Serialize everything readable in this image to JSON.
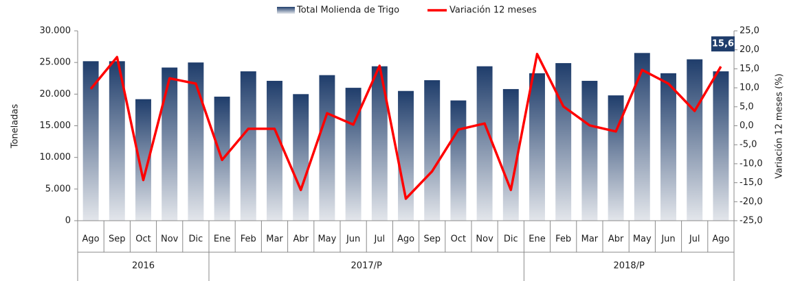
{
  "chart_data": {
    "type": "bar-line",
    "categories": [
      "Ago",
      "Sep",
      "Oct",
      "Nov",
      "Dic",
      "Ene",
      "Feb",
      "Mar",
      "Abr",
      "May",
      "Jun",
      "Jul",
      "Ago",
      "Sep",
      "Oct",
      "Nov",
      "Dic",
      "Ene",
      "Feb",
      "Mar",
      "Abr",
      "May",
      "Jun",
      "Jul",
      "Ago"
    ],
    "groups": [
      {
        "label": "2016",
        "span": 5
      },
      {
        "label": "2017/P",
        "span": 12
      },
      {
        "label": "2018/P",
        "span": 8
      }
    ],
    "ylabel": "Toneladas",
    "y2label": "Variación 12 meses (%)",
    "ylim": [
      0,
      30000
    ],
    "yticks": [
      0,
      {
        "value": 5000,
        "label": "5.000"
      },
      {
        "value": 10000,
        "label": "10.000"
      },
      {
        "value": 15000,
        "label": "15.000"
      },
      {
        "value": 20000,
        "label": "20.000"
      },
      {
        "value": 25000,
        "label": "25.000"
      },
      {
        "value": 30000,
        "label": "30.000"
      }
    ],
    "y2lim": [
      -25,
      25
    ],
    "y2ticks": [
      {
        "value": -25,
        "label": "-25,0"
      },
      {
        "value": -20,
        "label": "-20,0"
      },
      {
        "value": -15,
        "label": "-15,0"
      },
      {
        "value": -10,
        "label": "-10,0"
      },
      {
        "value": -5,
        "label": "-5,0"
      },
      {
        "value": 0,
        "label": "0,0"
      },
      {
        "value": 5,
        "label": "5,0"
      },
      {
        "value": 10,
        "label": "10,0"
      },
      {
        "value": 15,
        "label": "15,0"
      },
      {
        "value": 20,
        "label": "20,0"
      },
      {
        "value": 25,
        "label": "25,0"
      }
    ],
    "legend": "top",
    "series": [
      {
        "name": "Total Molienda de Trigo",
        "kind": "bar",
        "color": "#1f3d6b",
        "values": [
          25200,
          25200,
          19200,
          24200,
          25000,
          19600,
          23600,
          22100,
          20000,
          23000,
          21000,
          24400,
          20500,
          22200,
          19000,
          24400,
          20800,
          23300,
          24900,
          22100,
          19800,
          26500,
          23300,
          25500,
          23600
        ]
      },
      {
        "name": "Variación 12 meses",
        "kind": "line",
        "axis": "y2",
        "color": "#ff0000",
        "values": [
          9.7,
          18.1,
          -14.3,
          12.5,
          11.1,
          -9.0,
          -0.8,
          -0.8,
          -16.9,
          3.3,
          0.3,
          15.8,
          -19.2,
          -12.0,
          -1.0,
          0.6,
          -16.9,
          18.9,
          5.1,
          0.1,
          -1.5,
          14.7,
          11.1,
          3.9,
          15.6
        ],
        "value_labels": [
          null,
          null,
          null,
          null,
          null,
          null,
          null,
          null,
          null,
          null,
          null,
          null,
          null,
          null,
          null,
          null,
          null,
          null,
          null,
          null,
          null,
          null,
          null,
          null,
          "15,6"
        ]
      }
    ]
  }
}
